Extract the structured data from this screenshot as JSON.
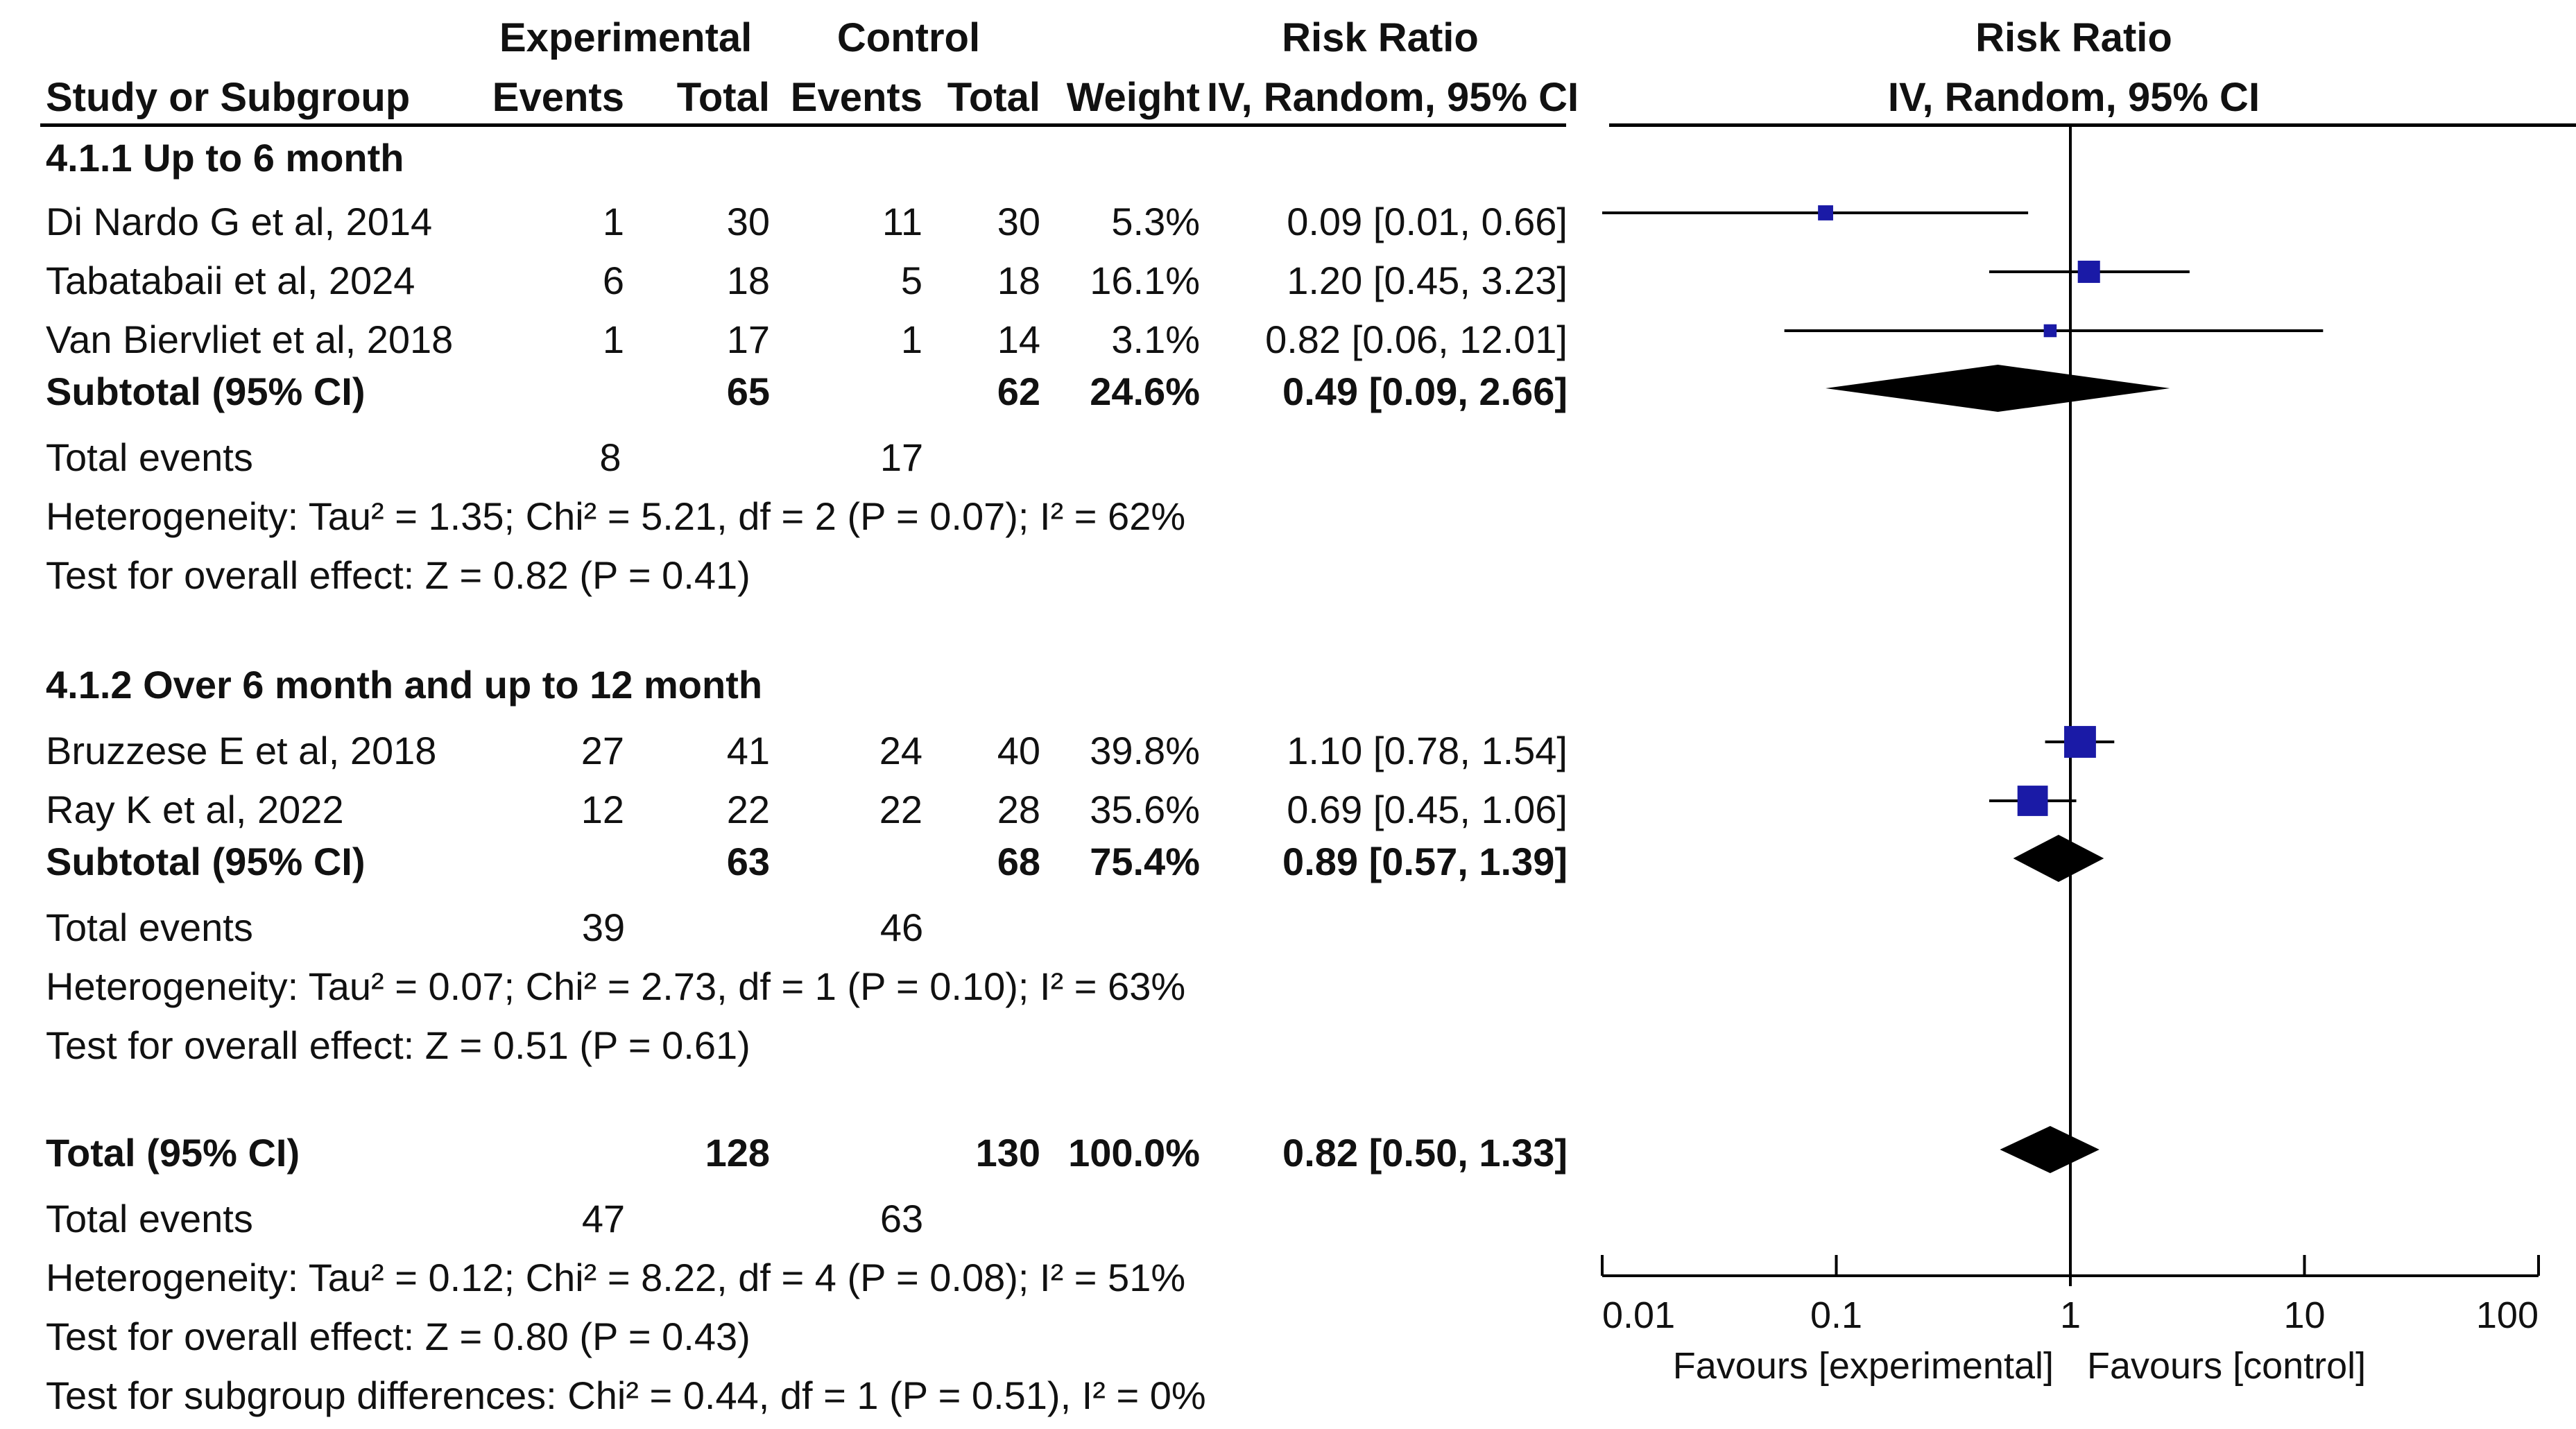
{
  "header": {
    "experimental": "Experimental",
    "control": "Control",
    "risk_ratio_col": "Risk Ratio",
    "risk_ratio_plot": "Risk Ratio",
    "study_or_subgroup": "Study or Subgroup",
    "exp_events": "Events",
    "exp_total": "Total",
    "ctl_events": "Events",
    "ctl_total": "Total",
    "weight": "Weight",
    "method_col": "IV, Random, 95% CI",
    "method_plot": "IV, Random, 95% CI"
  },
  "groups": [
    {
      "title": "4.1.1 Up to 6 month",
      "studies": [
        {
          "name": "Di Nardo G et al, 2014",
          "e_events": "1",
          "e_total": "30",
          "c_events": "11",
          "c_total": "30",
          "weight": "5.3%",
          "ci": "0.09 [0.01, 0.66]"
        },
        {
          "name": "Tabatabaii et al, 2024",
          "e_events": "6",
          "e_total": "18",
          "c_events": "5",
          "c_total": "18",
          "weight": "16.1%",
          "ci": "1.20 [0.45, 3.23]"
        },
        {
          "name": "Van Biervliet et al, 2018",
          "e_events": "1",
          "e_total": "17",
          "c_events": "1",
          "c_total": "14",
          "weight": "3.1%",
          "ci": "0.82 [0.06, 12.01]"
        }
      ],
      "subtotal": {
        "label": "Subtotal (95% CI)",
        "e_total": "65",
        "c_total": "62",
        "weight": "24.6%",
        "ci": "0.49 [0.09, 2.66]"
      },
      "total_events": {
        "label": "Total events",
        "exp": "8",
        "ctl": "17"
      },
      "heterogeneity": "Heterogeneity: Tau² = 1.35; Chi² = 5.21, df = 2 (P = 0.07); I² = 62%",
      "overall": "Test for overall effect: Z = 0.82 (P = 0.41)"
    },
    {
      "title": "4.1.2 Over 6 month and up to 12 month",
      "studies": [
        {
          "name": "Bruzzese E et al, 2018",
          "e_events": "27",
          "e_total": "41",
          "c_events": "24",
          "c_total": "40",
          "weight": "39.8%",
          "ci": "1.10 [0.78, 1.54]"
        },
        {
          "name": "Ray K et al, 2022",
          "e_events": "12",
          "e_total": "22",
          "c_events": "22",
          "c_total": "28",
          "weight": "35.6%",
          "ci": "0.69 [0.45, 1.06]"
        }
      ],
      "subtotal": {
        "label": "Subtotal (95% CI)",
        "e_total": "63",
        "c_total": "68",
        "weight": "75.4%",
        "ci": "0.89 [0.57, 1.39]"
      },
      "total_events": {
        "label": "Total events",
        "exp": "39",
        "ctl": "46"
      },
      "heterogeneity": "Heterogeneity: Tau² = 0.07; Chi² = 2.73, df = 1 (P = 0.10); I² = 63%",
      "overall": "Test for overall effect: Z = 0.51 (P = 0.61)"
    }
  ],
  "total": {
    "label": "Total (95% CI)",
    "e_total": "128",
    "c_total": "130",
    "weight": "100.0%",
    "ci": "0.82 [0.50, 1.33]",
    "total_events": {
      "label": "Total events",
      "exp": "47",
      "ctl": "63"
    },
    "heterogeneity": "Heterogeneity: Tau² = 0.12; Chi² = 8.22, df = 4 (P = 0.08); I² = 51%",
    "overall": "Test for overall effect: Z = 0.80 (P = 0.43)",
    "subgroup": "Test for subgroup differences: Chi² = 0.44, df = 1 (P = 0.51), I² = 0%"
  },
  "axis": {
    "ticks": [
      {
        "value": 0.01,
        "label": "0.01"
      },
      {
        "value": 0.1,
        "label": "0.1"
      },
      {
        "value": 1,
        "label": "1"
      },
      {
        "value": 10,
        "label": "10"
      },
      {
        "value": 100,
        "label": "100"
      }
    ],
    "favours_left": "Favours [experimental]",
    "favours_right": "Favours [control]"
  },
  "colors": {
    "marker": "#1a1aa6",
    "diamond": "#000000",
    "line": "#000000"
  },
  "chart_data": {
    "type": "forest",
    "scale": "log",
    "xlim": [
      0.01,
      100
    ],
    "null_value": 1,
    "title": "Risk Ratio",
    "xlabel": "IV, Random, 95% CI",
    "studies": [
      {
        "name": "Di Nardo G et al, 2014",
        "rr": 0.09,
        "lo": 0.01,
        "hi": 0.66,
        "weight": 5.3
      },
      {
        "name": "Tabatabaii et al, 2024",
        "rr": 1.2,
        "lo": 0.45,
        "hi": 3.23,
        "weight": 16.1
      },
      {
        "name": "Van Biervliet et al, 2018",
        "rr": 0.82,
        "lo": 0.06,
        "hi": 12.01,
        "weight": 3.1
      },
      {
        "name": "Bruzzese E et al, 2018",
        "rr": 1.1,
        "lo": 0.78,
        "hi": 1.54,
        "weight": 39.8
      },
      {
        "name": "Ray K et al, 2022",
        "rr": 0.69,
        "lo": 0.45,
        "hi": 1.06,
        "weight": 35.6
      }
    ],
    "diamonds": [
      {
        "name": "Subtotal 4.1.1",
        "rr": 0.49,
        "lo": 0.09,
        "hi": 2.66
      },
      {
        "name": "Subtotal 4.1.2",
        "rr": 0.89,
        "lo": 0.57,
        "hi": 1.39
      },
      {
        "name": "Total",
        "rr": 0.82,
        "lo": 0.5,
        "hi": 1.33
      }
    ]
  }
}
